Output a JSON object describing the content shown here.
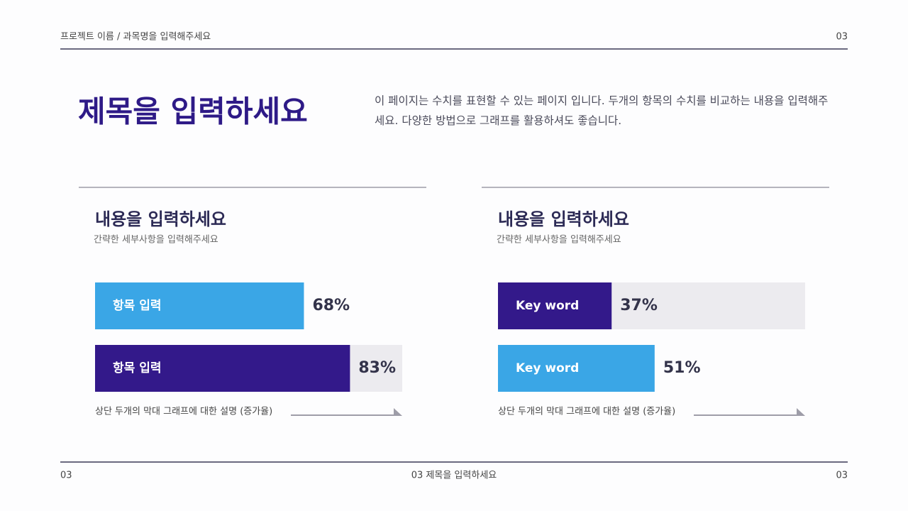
{
  "header": {
    "project": "프로젝트 이름 / 과목명을 입력해주세요",
    "page": "03"
  },
  "title": "제목을 입력하세요",
  "description": "이 페이지는 수치를 표현할 수 있는 페이지 입니다. 두개의 항목의 수치를 비교하는 내용을 입력해주세요. 다양한 방법으로 그래프를 활용하셔도 좋습니다.",
  "chart_data": [
    {
      "type": "bar",
      "title": "내용을 입력하세요",
      "subtitle": "간략한 세부사항을 입력해주세요",
      "categories": [
        "항목 입력",
        "항목 입력"
      ],
      "values": [
        68,
        83
      ],
      "value_labels": [
        "68%",
        "83%"
      ],
      "colors": [
        "#3aa6e6",
        "#33198a"
      ],
      "tracks": [
        false,
        true
      ],
      "xlim": [
        0,
        100
      ],
      "note": "상단 두개의 막대 그래프에 대한 설명 (증가율)"
    },
    {
      "type": "bar",
      "title": "내용을 입력하세요",
      "subtitle": "간략한 세부사항을 입력해주세요",
      "categories": [
        "Key word",
        "Key word"
      ],
      "values": [
        37,
        51
      ],
      "value_labels": [
        "37%",
        "51%"
      ],
      "colors": [
        "#33198a",
        "#3aa6e6"
      ],
      "tracks": [
        true,
        false
      ],
      "xlim": [
        0,
        100
      ],
      "note": "상단 두개의 막대 그래프에 대한 설명 (증가율)"
    }
  ],
  "footer": {
    "left": "03",
    "center": "03 제목을 입력하세요",
    "right": "03"
  }
}
